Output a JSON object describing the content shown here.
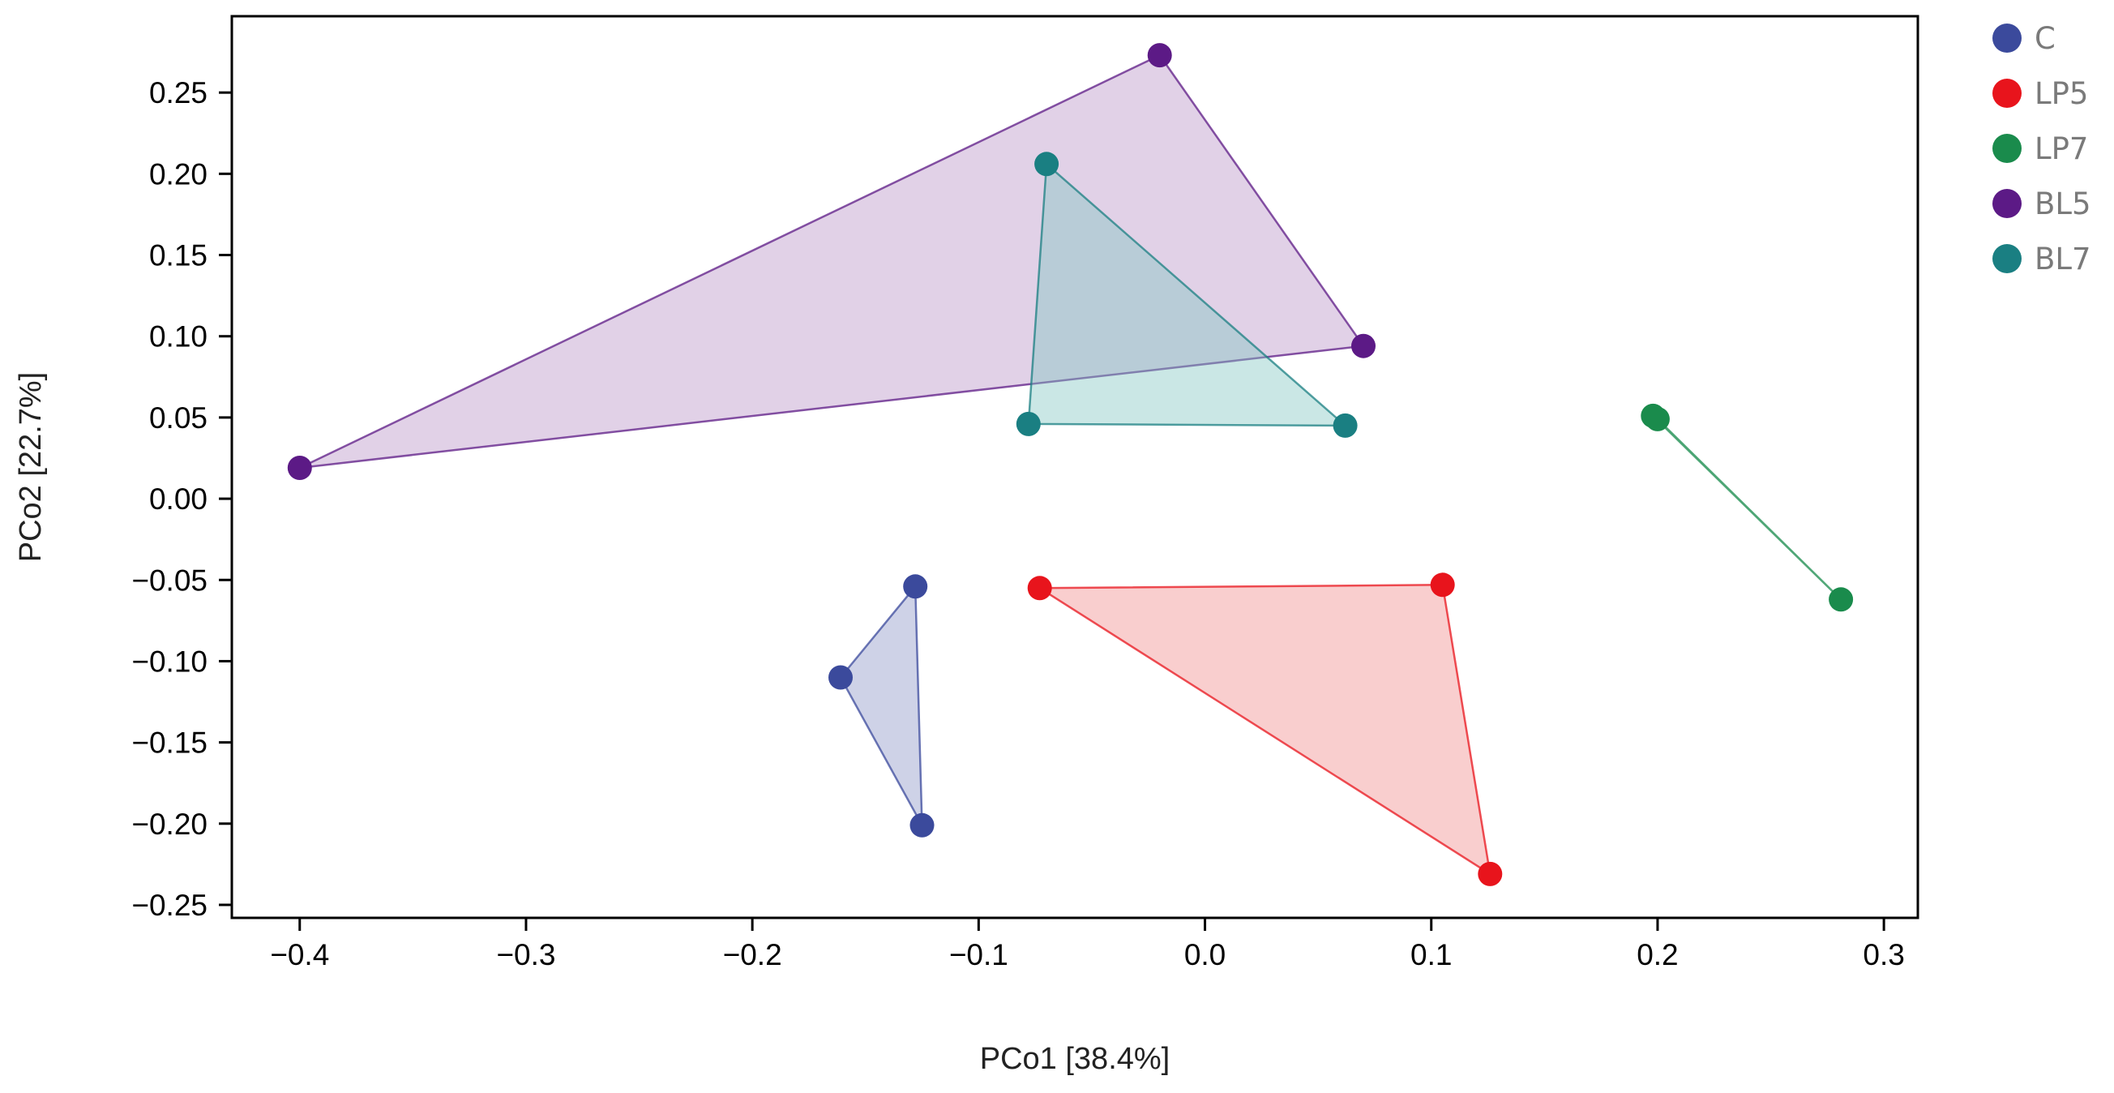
{
  "chart_data": {
    "type": "scatter",
    "title": "",
    "xlabel": "PCo1 [38.4%]",
    "ylabel": "PCo2 [22.7%]",
    "xlim": [
      -0.43,
      0.315
    ],
    "ylim": [
      -0.258,
      0.297
    ],
    "grid": false,
    "legend_position": "right-top, outside plot",
    "x_ticks": [
      -0.4,
      -0.3,
      -0.2,
      -0.1,
      0.0,
      0.1,
      0.2,
      0.3
    ],
    "x_tick_labels": [
      "−0.4",
      "−0.3",
      "−0.2",
      "−0.1",
      "0.0",
      "0.1",
      "0.2",
      "0.3"
    ],
    "y_ticks": [
      0.25,
      0.2,
      0.15,
      0.1,
      0.05,
      0.0,
      -0.05,
      -0.1,
      -0.15,
      -0.2,
      -0.25
    ],
    "y_tick_labels": [
      "0.25",
      "0.20",
      "0.15",
      "0.10",
      "0.05",
      "0.00",
      "−0.05",
      "−0.10",
      "−0.15",
      "−0.20",
      "−0.25"
    ],
    "series": [
      {
        "name": "C",
        "color": "#3b4a9c",
        "fill": "#8a93c6",
        "points": [
          [
            -0.128,
            -0.054
          ],
          [
            -0.161,
            -0.11
          ],
          [
            -0.125,
            -0.201
          ]
        ]
      },
      {
        "name": "LP5",
        "color": "#e8141c",
        "fill": "#f08a8a",
        "points": [
          [
            -0.073,
            -0.055
          ],
          [
            0.105,
            -0.053
          ],
          [
            0.126,
            -0.231
          ]
        ]
      },
      {
        "name": "LP7",
        "color": "#1a8b4c",
        "fill": "#4cb98f",
        "points": [
          [
            0.198,
            0.051
          ],
          [
            0.2,
            0.049
          ],
          [
            0.281,
            -0.062
          ]
        ]
      },
      {
        "name": "BL5",
        "color": "#5c1a86",
        "fill": "#b892c6",
        "points": [
          [
            -0.02,
            0.273
          ],
          [
            0.07,
            0.094
          ],
          [
            -0.4,
            0.019
          ]
        ]
      },
      {
        "name": "BL7",
        "color": "#1a7f82",
        "fill": "#80c6c2",
        "points": [
          [
            -0.07,
            0.206
          ],
          [
            -0.078,
            0.046
          ],
          [
            0.062,
            0.045
          ]
        ]
      }
    ]
  }
}
